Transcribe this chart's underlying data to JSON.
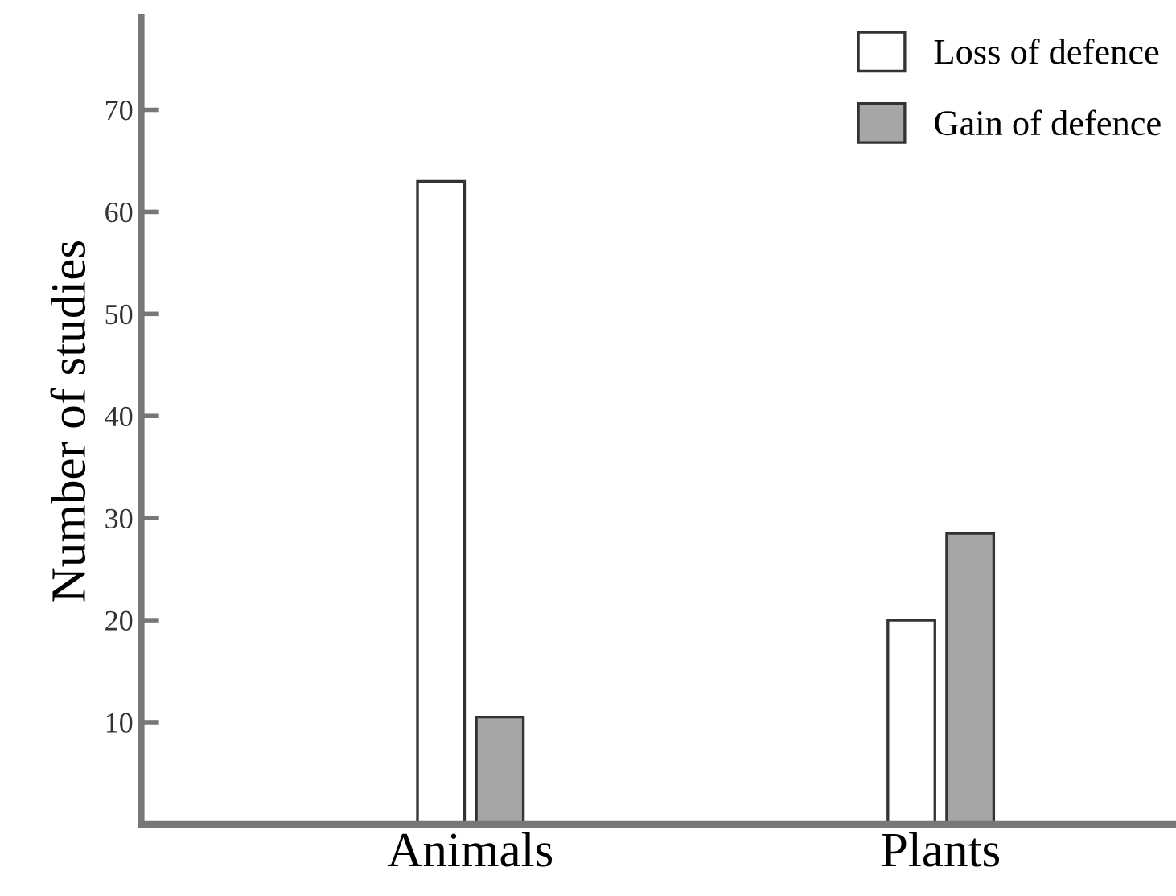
{
  "chart_data": {
    "type": "bar",
    "ylabel": "Number of studies",
    "categories": [
      "Animals",
      "Plants"
    ],
    "series": [
      {
        "name": "Loss of defence",
        "color": "#ffffff",
        "values": [
          63,
          20
        ]
      },
      {
        "name": "Gain of defence",
        "color": "#a6a6a6",
        "values": [
          10.5,
          28.5
        ]
      }
    ],
    "ylim": [
      0,
      79
    ],
    "yticks": [
      10,
      20,
      30,
      40,
      50,
      60,
      70
    ],
    "legend": "top right",
    "grid": false
  }
}
